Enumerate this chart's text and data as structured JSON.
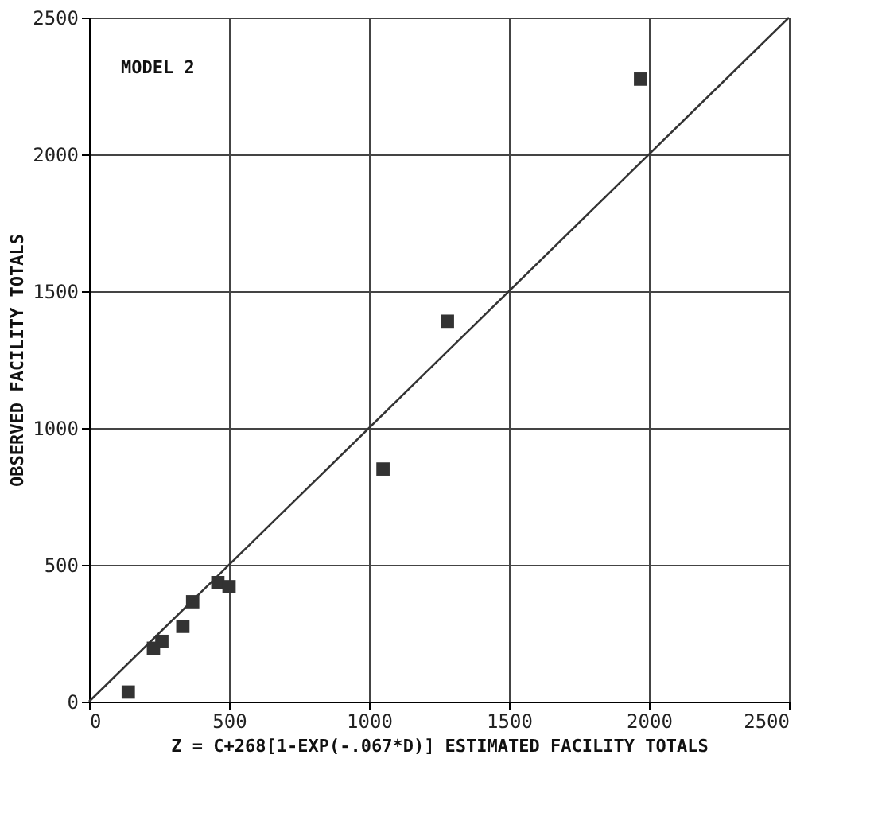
{
  "chart_data": {
    "type": "scatter",
    "xlabel": "Z = C+268[1-EXP(-.067*D)] ESTIMATED FACILITY TOTALS",
    "ylabel": "OBSERVED FACILITY TOTALS",
    "annotations": [
      "MODEL 2"
    ],
    "series": [
      {
        "color": "#333333",
        "marker": "square",
        "x": [
          140,
          230,
          260,
          335,
          370,
          460,
          500,
          1050,
          1280,
          1970
        ],
        "values": [
          35,
          195,
          220,
          275,
          365,
          435,
          420,
          850,
          1390,
          2275
        ]
      },
      {
        "type": "line",
        "color": "#333333",
        "line_style": "solid",
        "x": [
          0,
          2500
        ],
        "values": [
          0,
          2500
        ]
      }
    ],
    "xlim": [
      0,
      2500
    ],
    "ylim": [
      0,
      2500
    ],
    "xticks": [
      0,
      500,
      1000,
      1500,
      2000,
      2500
    ],
    "yticks": [
      0,
      500,
      1000,
      1500,
      2000,
      2500
    ],
    "grid": true
  }
}
